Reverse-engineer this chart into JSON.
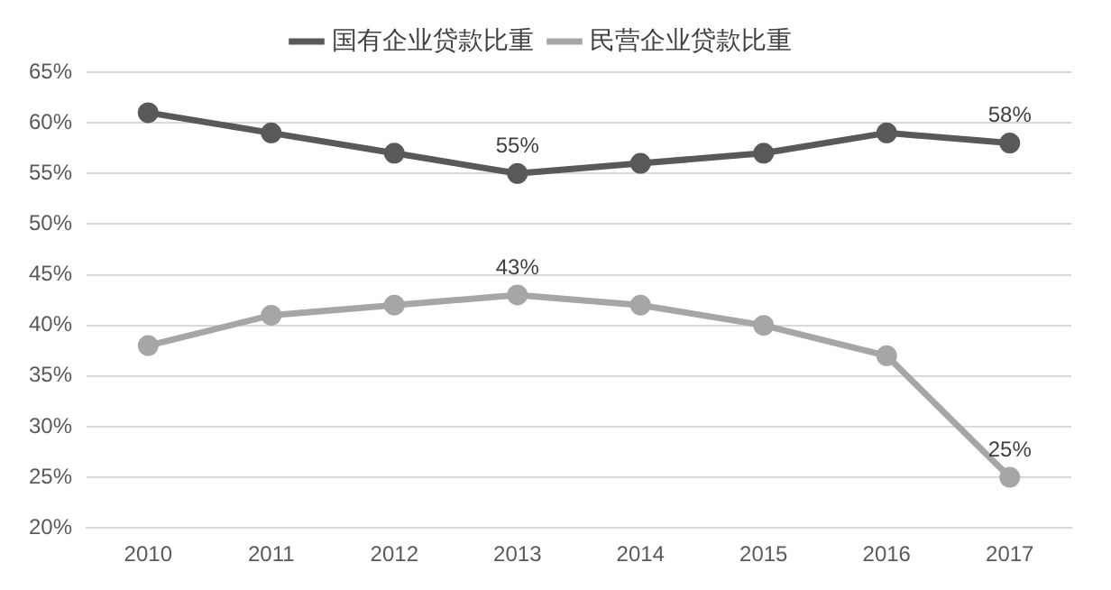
{
  "chart_data": {
    "type": "line",
    "categories": [
      "2010",
      "2011",
      "2012",
      "2013",
      "2014",
      "2015",
      "2016",
      "2017"
    ],
    "series": [
      {
        "name": "国有企业贷款比重",
        "color": "#595959",
        "values": [
          61,
          59,
          57,
          55,
          56,
          57,
          59,
          58
        ],
        "value_labels": [
          null,
          null,
          null,
          "55%",
          null,
          null,
          null,
          "58%"
        ]
      },
      {
        "name": "民营企业贷款比重",
        "color": "#a6a6a6",
        "values": [
          38,
          41,
          42,
          43,
          42,
          40,
          37,
          25
        ],
        "value_labels": [
          null,
          null,
          null,
          "43%",
          null,
          null,
          null,
          "25%"
        ]
      }
    ],
    "ylim": [
      20,
      65
    ],
    "yticks": [
      {
        "value": 20,
        "label": "20%"
      },
      {
        "value": 25,
        "label": "25%"
      },
      {
        "value": 30,
        "label": "30%"
      },
      {
        "value": 35,
        "label": "35%"
      },
      {
        "value": 40,
        "label": "40%"
      },
      {
        "value": 45,
        "label": "45%"
      },
      {
        "value": 50,
        "label": "50%"
      },
      {
        "value": 55,
        "label": "55%"
      },
      {
        "value": 60,
        "label": "60%"
      },
      {
        "value": 65,
        "label": "65%"
      }
    ],
    "grid": "y",
    "legend": "top",
    "marker": "circle",
    "line_style": "solid"
  }
}
